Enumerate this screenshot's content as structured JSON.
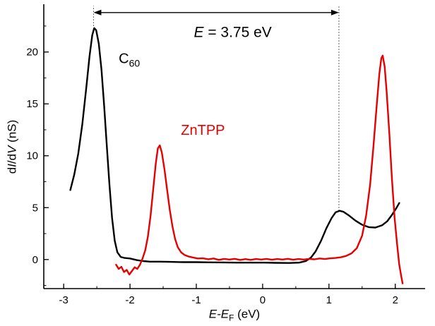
{
  "figure": {
    "background": "#ffffff"
  },
  "chart_data": {
    "type": "line",
    "title": "",
    "xlabel": "E-E_F (eV)",
    "ylabel": "dI/dV (nS)",
    "xlabel_parts": {
      "italic": "E-E",
      "sub": "F",
      "rest": " (eV)"
    },
    "ylabel_parts": {
      "d1": "d",
      "i1": "I",
      "mid": "/d",
      "i2": "V",
      "rest": " (nS)"
    },
    "xlim": [
      -3.3,
      2.45
    ],
    "ylim": [
      -2.8,
      24.6
    ],
    "x_ticks": [
      -3,
      -2,
      -1,
      0,
      1,
      2
    ],
    "y_ticks": [
      0,
      5,
      10,
      15,
      20
    ],
    "x_minor_step": 0.5,
    "y_minor_step": 2.5,
    "grid": false,
    "legend_position": "none",
    "axis_color": "#000000",
    "series": [
      {
        "name": "C60",
        "color": "#000000",
        "width": 2.4,
        "points": [
          [
            -2.9,
            6.7
          ],
          [
            -2.84,
            8.2
          ],
          [
            -2.78,
            10.2
          ],
          [
            -2.72,
            13.0
          ],
          [
            -2.66,
            16.5
          ],
          [
            -2.61,
            19.6
          ],
          [
            -2.57,
            21.6
          ],
          [
            -2.54,
            22.3
          ],
          [
            -2.51,
            22.1
          ],
          [
            -2.47,
            20.8
          ],
          [
            -2.43,
            18.3
          ],
          [
            -2.39,
            14.8
          ],
          [
            -2.35,
            11.0
          ],
          [
            -2.31,
            7.2
          ],
          [
            -2.27,
            4.0
          ],
          [
            -2.23,
            1.8
          ],
          [
            -2.19,
            0.7
          ],
          [
            -2.14,
            0.25
          ],
          [
            -2.08,
            0.15
          ],
          [
            -2.0,
            0.1
          ],
          [
            -1.9,
            -0.05
          ],
          [
            -1.8,
            -0.15
          ],
          [
            -1.7,
            -0.2
          ],
          [
            -1.55,
            -0.2
          ],
          [
            -1.4,
            -0.22
          ],
          [
            -1.2,
            -0.25
          ],
          [
            -1.0,
            -0.25
          ],
          [
            -0.8,
            -0.27
          ],
          [
            -0.6,
            -0.28
          ],
          [
            -0.4,
            -0.3
          ],
          [
            -0.2,
            -0.3
          ],
          [
            0.0,
            -0.3
          ],
          [
            0.2,
            -0.32
          ],
          [
            0.4,
            -0.33
          ],
          [
            0.55,
            -0.3
          ],
          [
            0.65,
            -0.15
          ],
          [
            0.73,
            0.2
          ],
          [
            0.8,
            0.8
          ],
          [
            0.88,
            1.8
          ],
          [
            0.96,
            3.0
          ],
          [
            1.04,
            4.0
          ],
          [
            1.1,
            4.55
          ],
          [
            1.16,
            4.7
          ],
          [
            1.22,
            4.6
          ],
          [
            1.3,
            4.25
          ],
          [
            1.4,
            3.75
          ],
          [
            1.5,
            3.35
          ],
          [
            1.6,
            3.12
          ],
          [
            1.7,
            3.08
          ],
          [
            1.8,
            3.3
          ],
          [
            1.88,
            3.7
          ],
          [
            1.95,
            4.3
          ],
          [
            2.02,
            5.0
          ],
          [
            2.06,
            5.45
          ]
        ]
      },
      {
        "name": "ZnTPP",
        "color": "#e60000",
        "width": 2.4,
        "points": [
          [
            -2.21,
            -0.5
          ],
          [
            -2.17,
            -0.9
          ],
          [
            -2.13,
            -0.7
          ],
          [
            -2.09,
            -1.2
          ],
          [
            -2.05,
            -1.0
          ],
          [
            -2.01,
            -1.45
          ],
          [
            -1.97,
            -1.1
          ],
          [
            -1.93,
            -0.75
          ],
          [
            -1.89,
            -0.9
          ],
          [
            -1.85,
            -0.5
          ],
          [
            -1.81,
            0.1
          ],
          [
            -1.77,
            0.9
          ],
          [
            -1.73,
            2.2
          ],
          [
            -1.69,
            4.2
          ],
          [
            -1.65,
            6.8
          ],
          [
            -1.61,
            9.3
          ],
          [
            -1.58,
            10.7
          ],
          [
            -1.55,
            11.0
          ],
          [
            -1.52,
            10.3
          ],
          [
            -1.48,
            8.7
          ],
          [
            -1.44,
            6.7
          ],
          [
            -1.4,
            4.8
          ],
          [
            -1.36,
            3.2
          ],
          [
            -1.32,
            2.0
          ],
          [
            -1.28,
            1.2
          ],
          [
            -1.23,
            0.7
          ],
          [
            -1.18,
            0.45
          ],
          [
            -1.12,
            0.3
          ],
          [
            -1.05,
            0.2
          ],
          [
            -0.98,
            0.1
          ],
          [
            -0.9,
            0.12
          ],
          [
            -0.82,
            0.03
          ],
          [
            -0.74,
            0.1
          ],
          [
            -0.66,
            -0.03
          ],
          [
            -0.58,
            0.06
          ],
          [
            -0.5,
            0.0
          ],
          [
            -0.42,
            0.07
          ],
          [
            -0.34,
            -0.04
          ],
          [
            -0.26,
            0.04
          ],
          [
            -0.18,
            -0.03
          ],
          [
            -0.1,
            0.05
          ],
          [
            -0.02,
            0.0
          ],
          [
            0.06,
            0.06
          ],
          [
            0.14,
            -0.02
          ],
          [
            0.22,
            0.05
          ],
          [
            0.3,
            0.0
          ],
          [
            0.38,
            0.07
          ],
          [
            0.46,
            -0.02
          ],
          [
            0.54,
            0.05
          ],
          [
            0.62,
            0.0
          ],
          [
            0.7,
            0.06
          ],
          [
            0.78,
            0.02
          ],
          [
            0.86,
            0.1
          ],
          [
            0.94,
            0.05
          ],
          [
            1.02,
            0.12
          ],
          [
            1.1,
            0.15
          ],
          [
            1.18,
            0.22
          ],
          [
            1.26,
            0.35
          ],
          [
            1.34,
            0.6
          ],
          [
            1.42,
            1.1
          ],
          [
            1.5,
            2.3
          ],
          [
            1.56,
            4.2
          ],
          [
            1.62,
            7.2
          ],
          [
            1.67,
            10.8
          ],
          [
            1.72,
            14.8
          ],
          [
            1.76,
            17.9
          ],
          [
            1.79,
            19.4
          ],
          [
            1.81,
            19.65
          ],
          [
            1.84,
            18.6
          ],
          [
            1.87,
            16.2
          ],
          [
            1.91,
            12.2
          ],
          [
            1.95,
            7.8
          ],
          [
            1.99,
            4.0
          ],
          [
            2.03,
            1.3
          ],
          [
            2.06,
            -0.5
          ],
          [
            2.09,
            -1.6
          ],
          [
            2.11,
            -2.3
          ]
        ]
      }
    ],
    "annotations": {
      "energy": {
        "italic": "E",
        "rest": " = 3.75 eV",
        "x": -0.45,
        "y": 21.9,
        "font_px": 21,
        "color": "#000000"
      },
      "c60": {
        "main": "C",
        "sub": "60",
        "x": -2.01,
        "y": 19.2,
        "font_px": 20,
        "color": "#000000"
      },
      "zntpp": {
        "text": "ZnTPP",
        "x": -0.9,
        "y": 12.4,
        "font_px": 20,
        "color": "#e60000"
      }
    },
    "arrow": {
      "x1": -2.55,
      "x2": 1.15,
      "y": 23.8,
      "color": "#000000"
    },
    "dotted_lines": [
      {
        "x": -2.55,
        "y1": 22.5,
        "y2": 24.45
      },
      {
        "x": 1.15,
        "y1": 4.7,
        "y2": 24.45
      }
    ]
  }
}
